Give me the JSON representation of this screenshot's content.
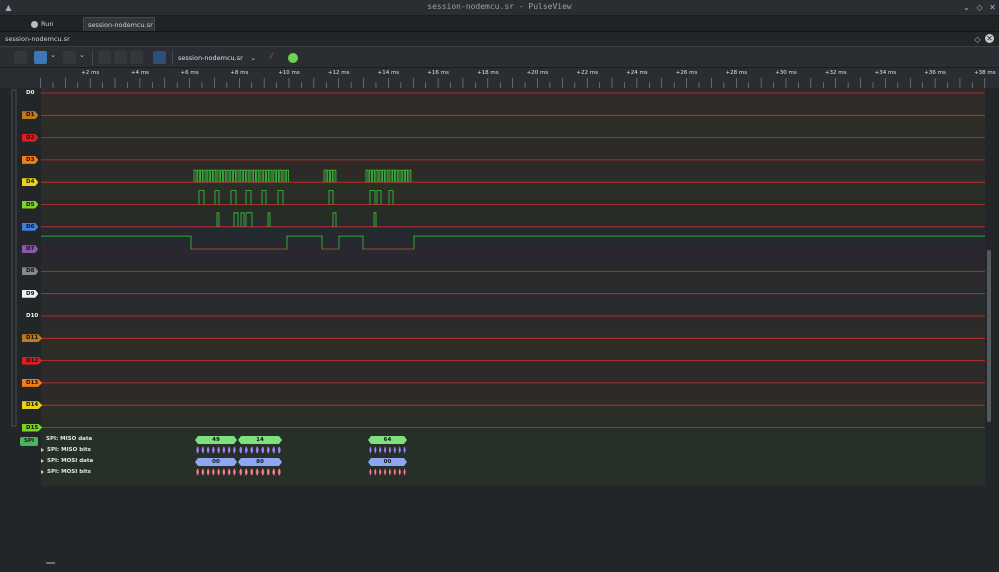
{
  "window": {
    "title": "session-nodemcu.sr - PulseView"
  },
  "tabs": [
    {
      "label": "Run"
    },
    {
      "label": "session-nodemcu.sr"
    }
  ],
  "session": {
    "label": "session-nodemcu.sr"
  },
  "toolbar": {
    "file_select": "session-nodemcu.sr"
  },
  "ruler": {
    "ticks": [
      "+2 ms",
      "+4 ms",
      "+6 ms",
      "+8 ms",
      "+10 ms",
      "+12 ms",
      "+14 ms",
      "+16 ms",
      "+18 ms",
      "+20 ms",
      "+22 ms",
      "+24 ms",
      "+26 ms",
      "+28 ms",
      "+30 ms",
      "+32 ms",
      "+34 ms",
      "+36 ms",
      "+38 ms"
    ]
  },
  "channels": [
    {
      "label": "D0",
      "color": "#1a1a1a"
    },
    {
      "label": "D1",
      "color": "#c0781f"
    },
    {
      "label": "D2",
      "color": "#d92020"
    },
    {
      "label": "D3",
      "color": "#f07d18"
    },
    {
      "label": "D4",
      "color": "#e8d21c"
    },
    {
      "label": "D5",
      "color": "#7dd22a"
    },
    {
      "label": "D6",
      "color": "#3f7fd8"
    },
    {
      "label": "D7",
      "color": "#8a5aa8"
    },
    {
      "label": "D8",
      "color": "#888888"
    },
    {
      "label": "D9",
      "color": "#f0f0f0"
    },
    {
      "label": "D10",
      "color": "#1a1a1a"
    },
    {
      "label": "D11",
      "color": "#c0781f"
    },
    {
      "label": "D12",
      "color": "#d92020"
    },
    {
      "label": "D13",
      "color": "#f07d18"
    },
    {
      "label": "D14",
      "color": "#e8d21c"
    },
    {
      "label": "D15",
      "color": "#7dd22a"
    }
  ],
  "decoder": {
    "badge": "SPI",
    "rows": [
      {
        "label": "SPI: MISO data",
        "color": "#7ee07e",
        "annotations": [
          "49",
          "14",
          "64"
        ]
      },
      {
        "label": "SPI: MISO bits",
        "color": "#9b86f0",
        "annotations": []
      },
      {
        "label": "SPI: MOSI data",
        "color": "#8fa6f5",
        "annotations": [
          "00",
          "80",
          "00"
        ]
      },
      {
        "label": "SPI: MOSI bits",
        "color": "#f07a8e",
        "annotations": []
      }
    ]
  },
  "colors": {
    "accent": "#3daee9",
    "trace_low": "#d32f2f",
    "trace_high": "#3cc83c"
  }
}
